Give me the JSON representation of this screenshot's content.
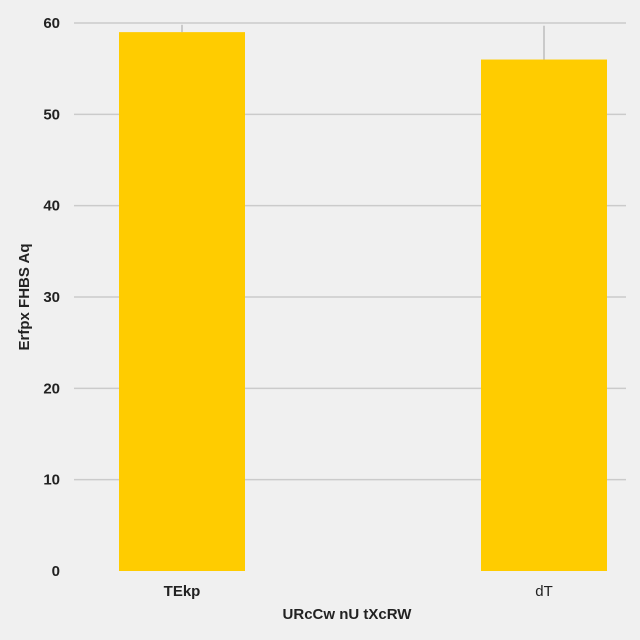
{
  "chart_data": {
    "type": "bar",
    "categories": [
      "TEkp",
      "dT"
    ],
    "category_label_weight": [
      "bold",
      "normal"
    ],
    "values": [
      59,
      56
    ],
    "error_upper": [
      59.8,
      59.7
    ],
    "xlabel": "URcCw nU tXcRW",
    "ylabel": "Erfpx FHBS Aq",
    "ylim": [
      0,
      60
    ],
    "yticks": [
      0,
      10,
      20,
      30,
      40,
      50,
      60
    ],
    "grid": "horizontal",
    "bar_color": "#ffcc00",
    "grid_color": "#cbcbcb",
    "background": "#f0f0f0"
  }
}
